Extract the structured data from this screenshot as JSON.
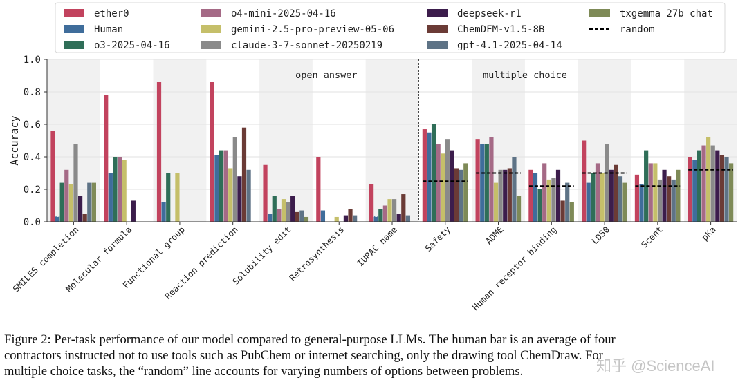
{
  "chart_data": {
    "type": "bar",
    "ylabel": "Accuracy",
    "ylim": [
      0,
      1.0
    ],
    "yticks": [
      "0.0",
      "0.2",
      "0.4",
      "0.6",
      "0.8",
      "1.0"
    ],
    "grid": true,
    "legend_position": "top",
    "section_labels": [
      "open answer",
      "multiple choice"
    ],
    "categories": [
      "SMILES completion",
      "Molecular formula",
      "Functional group",
      "Reaction prediction",
      "Solubility edit",
      "Retrosynthesis",
      "IUPAC name",
      "Safety",
      "ADME",
      "Human receptor binding",
      "LD50",
      "Scent",
      "pKa"
    ],
    "series": [
      {
        "name": "ether0",
        "color": "#c2435e",
        "values": [
          0.56,
          0.78,
          0.86,
          0.86,
          0.35,
          0.4,
          0.23,
          0.57,
          0.51,
          0.32,
          0.5,
          0.29,
          0.4
        ]
      },
      {
        "name": "Human",
        "color": "#3f6d9b",
        "values": [
          0.03,
          0.3,
          0.12,
          0.41,
          0.05,
          0.07,
          0.03,
          0.55,
          0.48,
          0.3,
          0.24,
          0.23,
          0.38
        ]
      },
      {
        "name": "o3-2025-04-16",
        "color": "#2f6e58",
        "values": [
          0.24,
          0.4,
          0.3,
          0.44,
          0.16,
          0.0,
          0.08,
          0.6,
          0.48,
          0.2,
          0.3,
          0.44,
          0.44
        ]
      },
      {
        "name": "o4-mini-2025-04-16",
        "color": "#a56a86",
        "values": [
          0.32,
          0.4,
          0.0,
          0.44,
          0.08,
          0.0,
          0.1,
          0.48,
          0.52,
          0.36,
          0.36,
          0.36,
          0.47
        ]
      },
      {
        "name": "gemini-2.5-pro-preview-05-06",
        "color": "#c5bf6a",
        "values": [
          0.23,
          0.38,
          0.3,
          0.33,
          0.14,
          0.03,
          0.14,
          0.42,
          0.24,
          0.26,
          0.3,
          0.36,
          0.52
        ]
      },
      {
        "name": "claude-3-7-sonnet-20250219",
        "color": "#8a8a8a",
        "values": [
          0.48,
          0.0,
          0.0,
          0.52,
          0.12,
          0.0,
          0.14,
          0.51,
          0.32,
          0.27,
          0.48,
          0.26,
          0.47
        ]
      },
      {
        "name": "deepseek-r1",
        "color": "#3c1d4c",
        "values": [
          0.16,
          0.13,
          0.0,
          0.28,
          0.16,
          0.04,
          0.05,
          0.44,
          0.32,
          0.32,
          0.32,
          0.32,
          0.44
        ]
      },
      {
        "name": "ChemDFM-v1.5-8B",
        "color": "#6b3b36",
        "values": [
          0.05,
          0.0,
          0.0,
          0.58,
          0.06,
          0.08,
          0.17,
          0.33,
          0.33,
          0.13,
          0.35,
          0.28,
          0.41
        ]
      },
      {
        "name": "gpt-4.1-2025-04-14",
        "color": "#5e7386",
        "values": [
          0.24,
          0.0,
          0.0,
          0.32,
          0.07,
          0.04,
          0.04,
          0.32,
          0.4,
          0.24,
          0.28,
          0.26,
          0.4
        ]
      },
      {
        "name": "txgemma_27b_chat",
        "color": "#7e8a57",
        "values": [
          0.24,
          0.0,
          0.0,
          0.0,
          0.03,
          0.0,
          0.0,
          0.36,
          0.16,
          0.12,
          0.24,
          0.32,
          0.36
        ]
      }
    ],
    "random_baseline": {
      "name": "random",
      "color": "#000000",
      "values": [
        null,
        null,
        null,
        null,
        null,
        null,
        null,
        0.25,
        0.3,
        0.22,
        0.3,
        0.22,
        0.32
      ]
    },
    "markers": [
      {
        "category": "SMILES completion",
        "series": "Human",
        "symbol": "×"
      },
      {
        "category": "IUPAC name",
        "series": "Human",
        "symbol": "×"
      }
    ]
  },
  "caption": {
    "lines": [
      "Figure 2: Per-task performance of our model compared to general-purpose LLMs. The human bar is an average of four",
      "contractors instructed not to use tools such as PubChem or internet searching, only the drawing tool ChemDraw. For",
      "multiple choice tasks, the “random” line accounts for varying numbers of options between problems."
    ]
  },
  "watermark": "知乎 @ScienceAI"
}
